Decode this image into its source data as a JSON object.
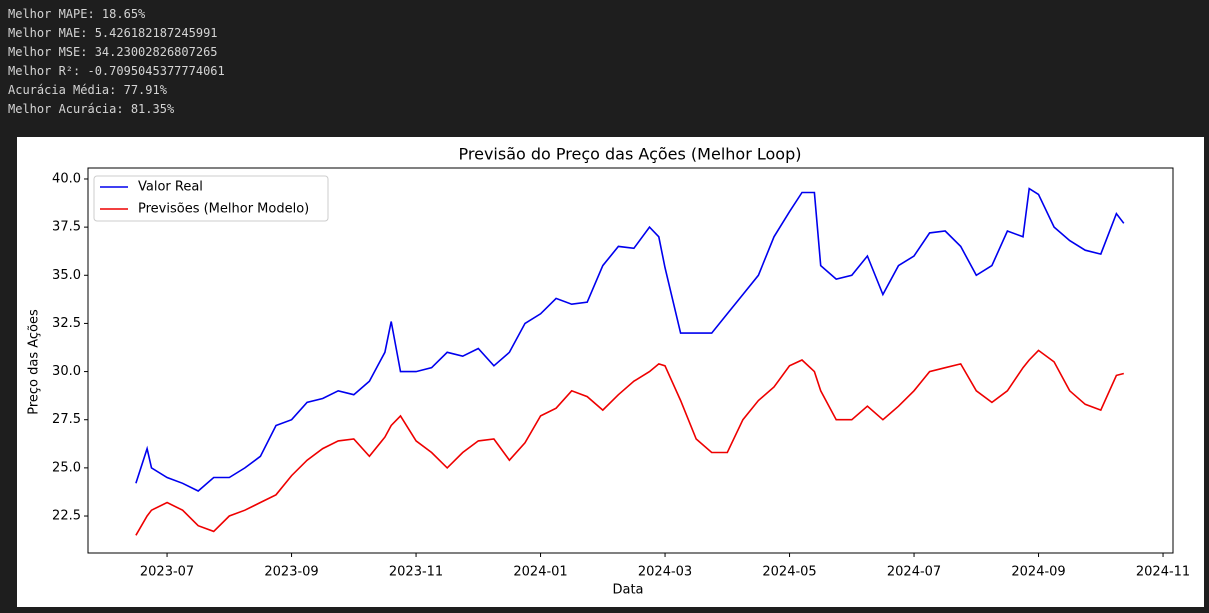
{
  "console": [
    "Melhor MAPE: 18.65%",
    "Melhor MAE: 5.426182187245991",
    "Melhor MSE: 34.23002826807265",
    "Melhor R²: -0.7095045377774061",
    "Acurácia Média: 77.91%",
    "Melhor Acurácia: 81.35%"
  ],
  "chart_data": {
    "type": "line",
    "title": "Previsão do Preço das Ações (Melhor Loop)",
    "x_label": "Data",
    "y_label": "Preço das Ações",
    "x": [
      0.5,
      0.68,
      0.75,
      1,
      1.25,
      1.5,
      1.75,
      2,
      2.25,
      2.5,
      2.75,
      3,
      3.25,
      3.5,
      3.75,
      4,
      4.25,
      4.5,
      4.6,
      4.75,
      5,
      5.25,
      5.5,
      5.75,
      6,
      6.25,
      6.5,
      6.75,
      7,
      7.25,
      7.5,
      7.75,
      8,
      8.25,
      8.5,
      8.75,
      8.9,
      9,
      9.25,
      9.5,
      9.75,
      10,
      10.25,
      10.5,
      10.75,
      11,
      11.2,
      11.4,
      11.5,
      11.75,
      12,
      12.25,
      12.5,
      12.75,
      13,
      13.25,
      13.5,
      13.75,
      14,
      14.25,
      14.5,
      14.75,
      14.85,
      15,
      15.25,
      15.5,
      15.75,
      16,
      16.25,
      16.37
    ],
    "series": [
      {
        "name": "Valor Real",
        "color": "#0000ee",
        "values": [
          24.2,
          26.0,
          25.0,
          24.5,
          24.2,
          23.8,
          24.5,
          24.5,
          25.0,
          25.6,
          27.2,
          27.5,
          28.4,
          28.6,
          29.0,
          28.8,
          29.5,
          31.0,
          32.6,
          30.0,
          30.0,
          30.2,
          31.0,
          30.8,
          31.2,
          30.3,
          31.0,
          32.5,
          33.0,
          33.8,
          33.5,
          33.6,
          35.5,
          36.5,
          36.4,
          37.5,
          37.0,
          35.4,
          32.0,
          32.0,
          32.0,
          33.0,
          34.0,
          35.0,
          37.0,
          38.3,
          39.3,
          39.3,
          35.5,
          34.8,
          35.0,
          36.0,
          34.0,
          35.5,
          36.0,
          37.2,
          37.3,
          36.5,
          35.0,
          35.5,
          37.3,
          37.0,
          39.5,
          39.2,
          37.5,
          36.8,
          36.3,
          36.1,
          38.2,
          37.7
        ]
      },
      {
        "name": "Previsões (Melhor Modelo)",
        "color": "#ee0000",
        "values": [
          21.5,
          22.5,
          22.8,
          23.2,
          22.8,
          22.0,
          21.7,
          22.5,
          22.8,
          23.2,
          23.6,
          24.6,
          25.4,
          26.0,
          26.4,
          26.5,
          25.6,
          26.6,
          27.2,
          27.7,
          26.4,
          25.8,
          25.0,
          25.8,
          26.4,
          26.5,
          25.4,
          26.3,
          27.7,
          28.1,
          29.0,
          28.7,
          28.0,
          28.8,
          29.5,
          30.0,
          30.4,
          30.3,
          28.5,
          26.5,
          25.8,
          25.8,
          27.5,
          28.5,
          29.2,
          30.3,
          30.6,
          30.0,
          29.0,
          27.5,
          27.5,
          28.2,
          27.5,
          28.2,
          29.0,
          30.0,
          30.2,
          30.4,
          29.0,
          28.4,
          29.0,
          30.2,
          30.6,
          31.1,
          30.5,
          29.0,
          28.3,
          28.0,
          29.8,
          29.9
        ]
      }
    ],
    "xlim": [
      -0.27,
      17.16
    ],
    "xticks": [
      {
        "value": 1,
        "label": "2023-07"
      },
      {
        "value": 3,
        "label": "2023-09"
      },
      {
        "value": 5,
        "label": "2023-11"
      },
      {
        "value": 7,
        "label": "2024-01"
      },
      {
        "value": 9,
        "label": "2024-03"
      },
      {
        "value": 11,
        "label": "2024-05"
      },
      {
        "value": 13,
        "label": "2024-07"
      },
      {
        "value": 15,
        "label": "2024-09"
      },
      {
        "value": 17,
        "label": "2024-11"
      }
    ],
    "ylim": [
      20.58,
      40.57
    ],
    "yticks": [
      22.5,
      {
        "value": 25,
        "label": "25.0"
      },
      27.5,
      {
        "value": 30,
        "label": "30.0"
      },
      32.5,
      {
        "value": 35,
        "label": "35.0"
      },
      37.5,
      {
        "value": 40,
        "label": "40.0"
      }
    ],
    "legend": "upper left",
    "grid": false
  }
}
